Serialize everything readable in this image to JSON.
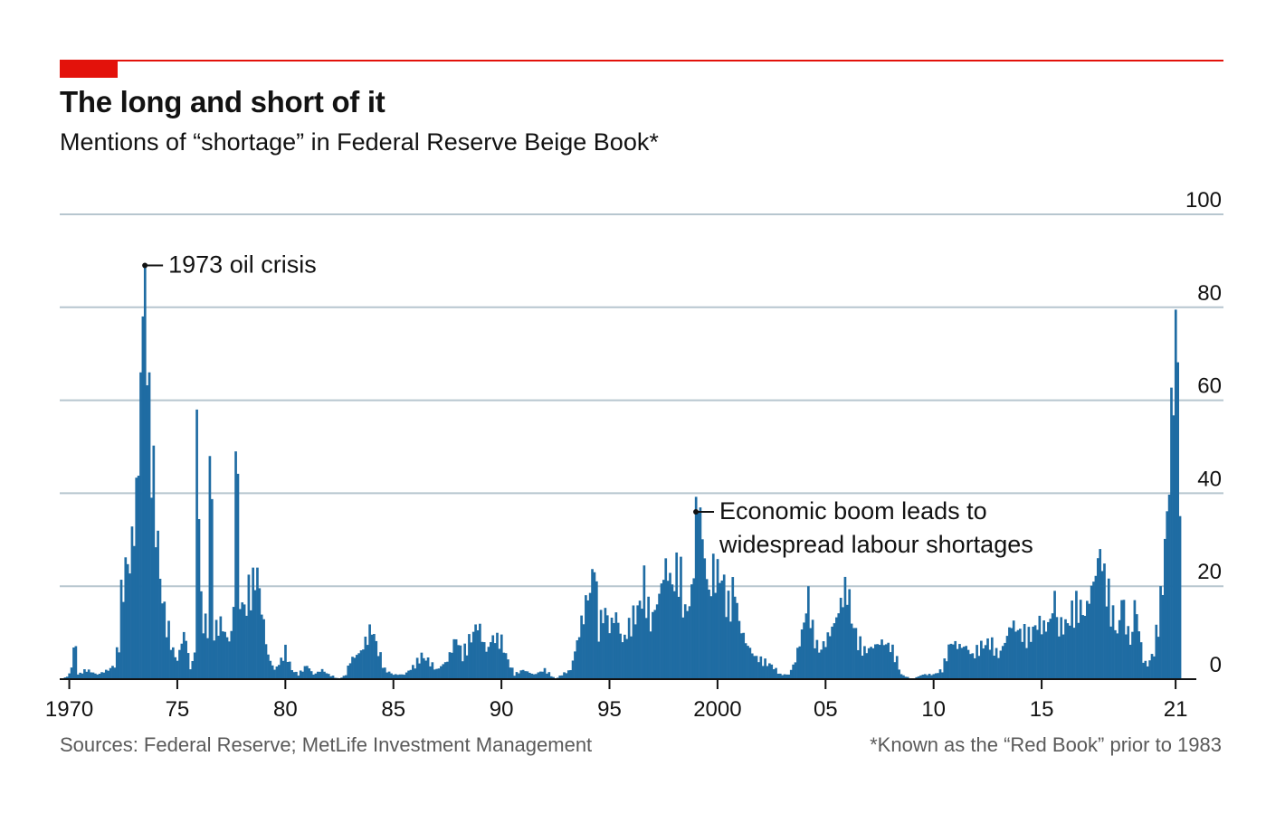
{
  "header": {
    "title": "The long and short of it",
    "subtitle": "Mentions of “shortage” in Federal Reserve Beige Book*"
  },
  "footer": {
    "source": "Sources: Federal Reserve; MetLife Investment Management",
    "footnote": "*Known as the “Red Book” prior to 1983"
  },
  "colors": {
    "accent_red": "#e3120b",
    "bar": "#1f6ca3",
    "grid": "#b7c6cf",
    "axis": "#121212"
  },
  "chart_data": {
    "type": "bar",
    "title": "The long and short of it",
    "subtitle": "Mentions of “shortage” in Federal Reserve Beige Book*",
    "xlabel": "",
    "ylabel": "",
    "xlim": [
      1969.6,
      2022.2
    ],
    "ylim": [
      0,
      100
    ],
    "yticks": [
      0,
      20,
      40,
      60,
      80,
      100
    ],
    "ytick_labels": [
      "0",
      "20",
      "40",
      "60",
      "80",
      "100"
    ],
    "xticks": [
      1970,
      1975,
      1980,
      1985,
      1990,
      1995,
      2000,
      2005,
      2010,
      2015,
      2021
    ],
    "xtick_labels": [
      "1970",
      "75",
      "80",
      "85",
      "90",
      "95",
      "2000",
      "05",
      "10",
      "15",
      "21"
    ],
    "grid": true,
    "annotations": [
      {
        "label": "1973 oil crisis",
        "x": 1973.5,
        "y": 89
      },
      {
        "label": "Economic boom leads to widespread labour shortages",
        "lines": [
          "Economic boom leads to",
          "widespread labour shortages"
        ],
        "x": 1999.0,
        "y": 36
      }
    ],
    "series": [
      {
        "name": "Mentions of “shortage”",
        "keyframes": [
          [
            1969.7,
            0
          ],
          [
            1970.0,
            1
          ],
          [
            1970.3,
            8
          ],
          [
            1970.4,
            1
          ],
          [
            1970.8,
            2
          ],
          [
            1971.3,
            1
          ],
          [
            1971.8,
            2
          ],
          [
            1972.1,
            3
          ],
          [
            1972.3,
            8
          ],
          [
            1972.4,
            17
          ],
          [
            1972.6,
            24
          ],
          [
            1972.8,
            25
          ],
          [
            1973.0,
            33
          ],
          [
            1973.2,
            46
          ],
          [
            1973.3,
            66
          ],
          [
            1973.5,
            89
          ],
          [
            1973.65,
            57
          ],
          [
            1973.8,
            48
          ],
          [
            1974.0,
            35
          ],
          [
            1974.2,
            22
          ],
          [
            1974.4,
            14
          ],
          [
            1974.6,
            10
          ],
          [
            1974.8,
            6
          ],
          [
            1975.0,
            4
          ],
          [
            1975.3,
            10
          ],
          [
            1975.5,
            6
          ],
          [
            1975.6,
            2
          ],
          [
            1975.8,
            6
          ],
          [
            1975.95,
            58
          ],
          [
            1976.1,
            15
          ],
          [
            1976.4,
            10
          ],
          [
            1976.55,
            48
          ],
          [
            1976.7,
            10
          ],
          [
            1977.0,
            12
          ],
          [
            1977.4,
            8
          ],
          [
            1977.6,
            14
          ],
          [
            1977.75,
            49
          ],
          [
            1977.9,
            17
          ],
          [
            1978.1,
            15
          ],
          [
            1978.3,
            18
          ],
          [
            1978.5,
            23
          ],
          [
            1978.7,
            24
          ],
          [
            1978.9,
            15
          ],
          [
            1979.2,
            5
          ],
          [
            1979.5,
            2
          ],
          [
            1979.8,
            4
          ],
          [
            1980.0,
            6
          ],
          [
            1980.3,
            2
          ],
          [
            1980.6,
            1
          ],
          [
            1981.0,
            3
          ],
          [
            1981.3,
            1
          ],
          [
            1981.7,
            2
          ],
          [
            1982.0,
            1
          ],
          [
            1982.5,
            0
          ],
          [
            1982.8,
            1
          ],
          [
            1983.0,
            4
          ],
          [
            1983.5,
            6
          ],
          [
            1983.8,
            9
          ],
          [
            1984.0,
            11
          ],
          [
            1984.3,
            6
          ],
          [
            1984.6,
            2
          ],
          [
            1985.0,
            1
          ],
          [
            1985.5,
            1
          ],
          [
            1986.0,
            3
          ],
          [
            1986.3,
            5
          ],
          [
            1986.6,
            4
          ],
          [
            1987.0,
            2
          ],
          [
            1987.5,
            4
          ],
          [
            1987.9,
            9
          ],
          [
            1988.2,
            5
          ],
          [
            1988.6,
            9
          ],
          [
            1988.9,
            12
          ],
          [
            1989.3,
            6
          ],
          [
            1989.6,
            9
          ],
          [
            1990.0,
            8
          ],
          [
            1990.3,
            4
          ],
          [
            1990.6,
            1
          ],
          [
            1991.0,
            2
          ],
          [
            1991.5,
            1
          ],
          [
            1992.0,
            2
          ],
          [
            1992.5,
            0
          ],
          [
            1992.8,
            1
          ],
          [
            1993.2,
            2
          ],
          [
            1993.5,
            8
          ],
          [
            1993.8,
            14
          ],
          [
            1994.0,
            18
          ],
          [
            1994.3,
            22
          ],
          [
            1994.5,
            11
          ],
          [
            1994.8,
            15
          ],
          [
            1995.0,
            11
          ],
          [
            1995.3,
            14
          ],
          [
            1995.6,
            8
          ],
          [
            1996.0,
            12
          ],
          [
            1996.4,
            16
          ],
          [
            1996.6,
            20
          ],
          [
            1996.9,
            12
          ],
          [
            1997.3,
            18
          ],
          [
            1997.6,
            25
          ],
          [
            1997.9,
            20
          ],
          [
            1998.2,
            24
          ],
          [
            1998.5,
            14
          ],
          [
            1998.8,
            18
          ],
          [
            1999.0,
            34
          ],
          [
            1999.2,
            35
          ],
          [
            1999.4,
            26
          ],
          [
            1999.6,
            18
          ],
          [
            1999.8,
            23
          ],
          [
            2000.2,
            22
          ],
          [
            2000.5,
            15
          ],
          [
            2000.8,
            20
          ],
          [
            2001.0,
            12
          ],
          [
            2001.3,
            8
          ],
          [
            2001.7,
            5
          ],
          [
            2002.0,
            4
          ],
          [
            2002.5,
            3
          ],
          [
            2002.9,
            1
          ],
          [
            2003.3,
            1
          ],
          [
            2003.6,
            4
          ],
          [
            2003.8,
            8
          ],
          [
            2004.0,
            12
          ],
          [
            2004.2,
            20
          ],
          [
            2004.4,
            10
          ],
          [
            2004.7,
            6
          ],
          [
            2005.0,
            8
          ],
          [
            2005.4,
            12
          ],
          [
            2005.7,
            16
          ],
          [
            2005.95,
            22
          ],
          [
            2006.2,
            13
          ],
          [
            2006.5,
            8
          ],
          [
            2006.8,
            6
          ],
          [
            2007.2,
            7
          ],
          [
            2007.6,
            8
          ],
          [
            2008.0,
            7
          ],
          [
            2008.3,
            4
          ],
          [
            2008.5,
            1
          ],
          [
            2009.0,
            0
          ],
          [
            2009.5,
            1
          ],
          [
            2010.0,
            1
          ],
          [
            2010.4,
            2
          ],
          [
            2010.6,
            5
          ],
          [
            2010.8,
            8
          ],
          [
            2011.2,
            7
          ],
          [
            2011.5,
            7
          ],
          [
            2011.8,
            5
          ],
          [
            2012.2,
            7
          ],
          [
            2012.6,
            8
          ],
          [
            2013.0,
            5
          ],
          [
            2013.3,
            8
          ],
          [
            2013.6,
            12
          ],
          [
            2014.0,
            10
          ],
          [
            2014.4,
            9
          ],
          [
            2014.8,
            12
          ],
          [
            2015.2,
            11
          ],
          [
            2015.5,
            14
          ],
          [
            2015.8,
            11
          ],
          [
            2016.2,
            12
          ],
          [
            2016.6,
            16
          ],
          [
            2017.0,
            14
          ],
          [
            2017.4,
            21
          ],
          [
            2017.7,
            27
          ],
          [
            2017.9,
            22
          ],
          [
            2018.2,
            15
          ],
          [
            2018.5,
            10
          ],
          [
            2018.8,
            14
          ],
          [
            2019.1,
            8
          ],
          [
            2019.4,
            14
          ],
          [
            2019.7,
            4
          ],
          [
            2019.9,
            3
          ],
          [
            2020.2,
            6
          ],
          [
            2020.5,
            16
          ],
          [
            2020.75,
            31
          ],
          [
            2020.9,
            44
          ],
          [
            2021.05,
            61
          ],
          [
            2021.2,
            73
          ],
          [
            2021.35,
            70
          ],
          [
            2021.45,
            0
          ]
        ],
        "spikes": [
          [
            1973.5,
            89
          ],
          [
            1973.35,
            66
          ],
          [
            1973.65,
            66
          ],
          [
            1975.95,
            58
          ],
          [
            1976.55,
            48
          ],
          [
            1977.75,
            49
          ],
          [
            1978.5,
            24
          ],
          [
            1978.75,
            24
          ],
          [
            1999.1,
            36
          ],
          [
            1994.3,
            23
          ],
          [
            1997.6,
            26
          ],
          [
            2004.2,
            20
          ],
          [
            2005.95,
            22
          ],
          [
            2017.7,
            28
          ],
          [
            2015.6,
            19
          ],
          [
            2018.7,
            17
          ],
          [
            2019.3,
            17
          ],
          [
            2016.6,
            19
          ]
        ]
      }
    ]
  }
}
